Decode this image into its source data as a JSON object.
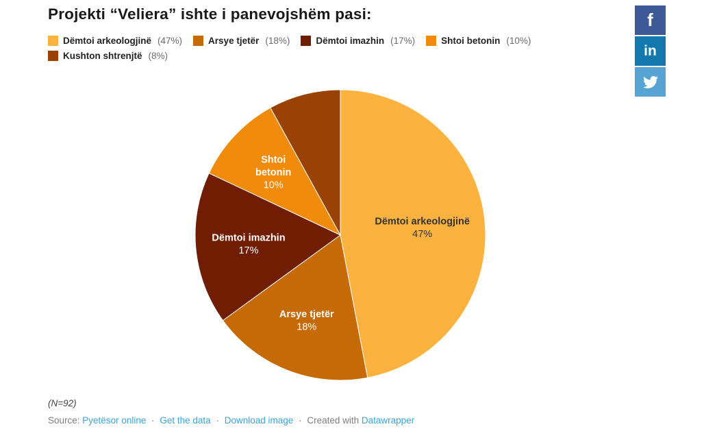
{
  "title": "Projekti “Veliera” ishte i panevojshëm pasi:",
  "legend": {
    "items": [
      {
        "label": "Dëmtoi arkeologjinë",
        "pct": "(47%)",
        "color": "#fcb23e"
      },
      {
        "label": "Arsye tjetër",
        "pct": "(18%)",
        "color": "#c66a08"
      },
      {
        "label": "Dëmtoi imazhin",
        "pct": "(17%)",
        "color": "#701d03"
      },
      {
        "label": "Shtoi betonin",
        "pct": "(10%)",
        "color": "#f08b0b"
      },
      {
        "label": "Kushton shtrenjtë",
        "pct": "(8%)",
        "color": "#9a4204"
      }
    ]
  },
  "chart_data": {
    "type": "pie",
    "title": "Projekti “Veliera” ishte i panevojshëm pasi:",
    "categories": [
      "Dëmtoi arkeologjinë",
      "Arsye tjetër",
      "Dëmtoi imazhin",
      "Shtoi betonin",
      "Kushton shtrenjtë"
    ],
    "values": [
      47,
      18,
      17,
      10,
      8
    ],
    "unit": "%",
    "start_angle_deg": 0,
    "direction": "clockwise",
    "sample_note": "(N=92)",
    "slices": [
      {
        "label": "Dëmtoi arkeologjinë",
        "value": 47,
        "color": "#fcb23e",
        "label_lines": [
          "Dëmtoi arkeologjinë"
        ],
        "pct_line": "47%",
        "label_color": "#333333"
      },
      {
        "label": "Arsye tjetër",
        "value": 18,
        "color": "#c66a08",
        "label_lines": [
          "Arsye tjetër"
        ],
        "pct_line": "18%",
        "label_color": "#ffffff"
      },
      {
        "label": "Dëmtoi imazhin",
        "value": 17,
        "color": "#701d03",
        "label_lines": [
          "Dëmtoi imazhin"
        ],
        "pct_line": "17%",
        "label_color": "#ffffff"
      },
      {
        "label": "Shtoi betonin",
        "value": 10,
        "color": "#f08b0b",
        "label_lines": [
          "Shtoi",
          "betonin"
        ],
        "pct_line": "10%",
        "label_color": "#ffffff"
      },
      {
        "label": "Kushton shtrenjtë",
        "value": 8,
        "color": "#9a4204",
        "label_lines": [],
        "pct_line": "",
        "label_color": "#ffffff"
      }
    ]
  },
  "footer": {
    "note": "(N=92)",
    "source_prefix": "Source:",
    "separator": "·",
    "links": [
      {
        "text": "Pyetësor online"
      },
      {
        "text": "Get the data"
      },
      {
        "text": "Download image"
      }
    ],
    "created_prefix": "Created with",
    "created_link": "Datawrapper"
  },
  "share": {
    "facebook": {
      "glyph": "f",
      "color": "#3d5a96"
    },
    "linkedin": {
      "glyph": "in",
      "color": "#1278ae"
    },
    "twitter": {
      "glyph": "twitter-bird",
      "color": "#57a3d3"
    }
  }
}
